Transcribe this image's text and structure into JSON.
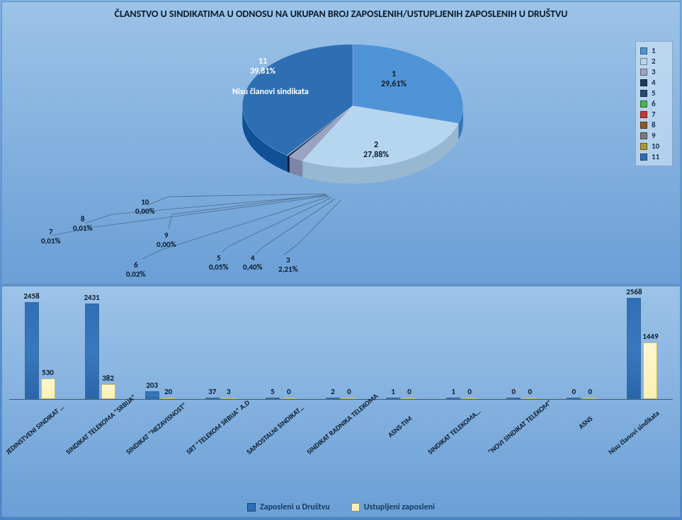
{
  "title": "ČLANSTVO U SINDIKATIMA U ODNOSU NA UKUPAN BROJ ZAPOSLENIH/USTUPLJENIH ZAPOSLENIH U DRUŠTVU",
  "title_fontsize": 14,
  "pie": {
    "type": "pie-3d",
    "slices": [
      {
        "id": "1",
        "label": "1",
        "value": "29,61%",
        "pct": 29.61,
        "color": "#4f94d6"
      },
      {
        "id": "2",
        "label": "2",
        "value": "27,88%",
        "pct": 27.88,
        "color": "#b6d5ef"
      },
      {
        "id": "3",
        "label": "3",
        "value": "2,21%",
        "pct": 2.21,
        "color": "#9aa4c2"
      },
      {
        "id": "4",
        "label": "4",
        "value": "0,40%",
        "pct": 0.4,
        "color": "#1e3860"
      },
      {
        "id": "5",
        "label": "5",
        "value": "0,05%",
        "pct": 0.05,
        "color": "#2c4975"
      },
      {
        "id": "6",
        "label": "6",
        "value": "0,02%",
        "pct": 0.02,
        "color": "#4db34d"
      },
      {
        "id": "7",
        "label": "7",
        "value": "0,01%",
        "pct": 0.01,
        "color": "#c33a2f"
      },
      {
        "id": "8",
        "label": "8",
        "value": "0,01%",
        "pct": 0.01,
        "color": "#8a5a2a"
      },
      {
        "id": "9",
        "label": "9",
        "value": "0,00%",
        "pct": 0.0,
        "color": "#7a7a7a"
      },
      {
        "id": "10",
        "label": "10",
        "value": "0,00%",
        "pct": 0.0,
        "color": "#a89a2e"
      },
      {
        "id": "11",
        "label": "11",
        "value": "39,81%",
        "pct": 39.81,
        "color": "#2e6fb3"
      }
    ],
    "annotation_on_slice11": "Nisu članovi sindikata",
    "background_gradient_top": "#9cc3e8",
    "background_gradient_bottom": "#6b9fd6"
  },
  "legend_items": [
    {
      "label": "1",
      "color": "#4f94d6"
    },
    {
      "label": "2",
      "color": "#b6d5ef"
    },
    {
      "label": "3",
      "color": "#9aa4c2"
    },
    {
      "label": "4",
      "color": "#1e3860"
    },
    {
      "label": "5",
      "color": "#2c4975"
    },
    {
      "label": "6",
      "color": "#4db34d"
    },
    {
      "label": "7",
      "color": "#c33a2f"
    },
    {
      "label": "8",
      "color": "#8a5a2a"
    },
    {
      "label": "9",
      "color": "#7a7a7a"
    },
    {
      "label": "10",
      "color": "#a89a2e"
    },
    {
      "label": "11",
      "color": "#2e6fb3"
    }
  ],
  "bar": {
    "type": "bar",
    "ylim": [
      0,
      2700
    ],
    "series": [
      {
        "name": "Zaposleni u Društvu",
        "color": "#2f6fb5"
      },
      {
        "name": "Ustupljeni zaposleni",
        "color": "#fcefb5"
      }
    ],
    "categories": [
      {
        "label": "JEDINSTVENI SINDIKAT …",
        "a": 2458,
        "b": 530
      },
      {
        "label": "SINDIKAT TELEKOMA \"SRBIJA\"",
        "a": 2431,
        "b": 382
      },
      {
        "label": "SINDIKAT \"NEZAVISNOST\"",
        "a": 203,
        "b": 20
      },
      {
        "label": "SRT \"TELEKOM SRBIJA\" A.D",
        "a": 37,
        "b": 3
      },
      {
        "label": "SAMOSTALNI SINDIKAT…",
        "a": 5,
        "b": 0
      },
      {
        "label": "SINDIKAT RADNIKA TELEKOMA",
        "a": 2,
        "b": 0
      },
      {
        "label": "ASNS-TIM",
        "a": 1,
        "b": 0
      },
      {
        "label": "SINDIKAT TELEKOMA…",
        "a": 1,
        "b": 0
      },
      {
        "label": "\"NOVI SINDIKAT TELEKOM\"",
        "a": 0,
        "b": 0
      },
      {
        "label": "ASNS",
        "a": 0,
        "b": 0
      },
      {
        "label": "Nisu članovi sindikata",
        "a": 2568,
        "b": 1449
      }
    ],
    "label_fontsize": 10,
    "value_fontsize": 11,
    "background_gradient_top": "#9cc3e8",
    "background_gradient_bottom": "#6b9fd6"
  }
}
